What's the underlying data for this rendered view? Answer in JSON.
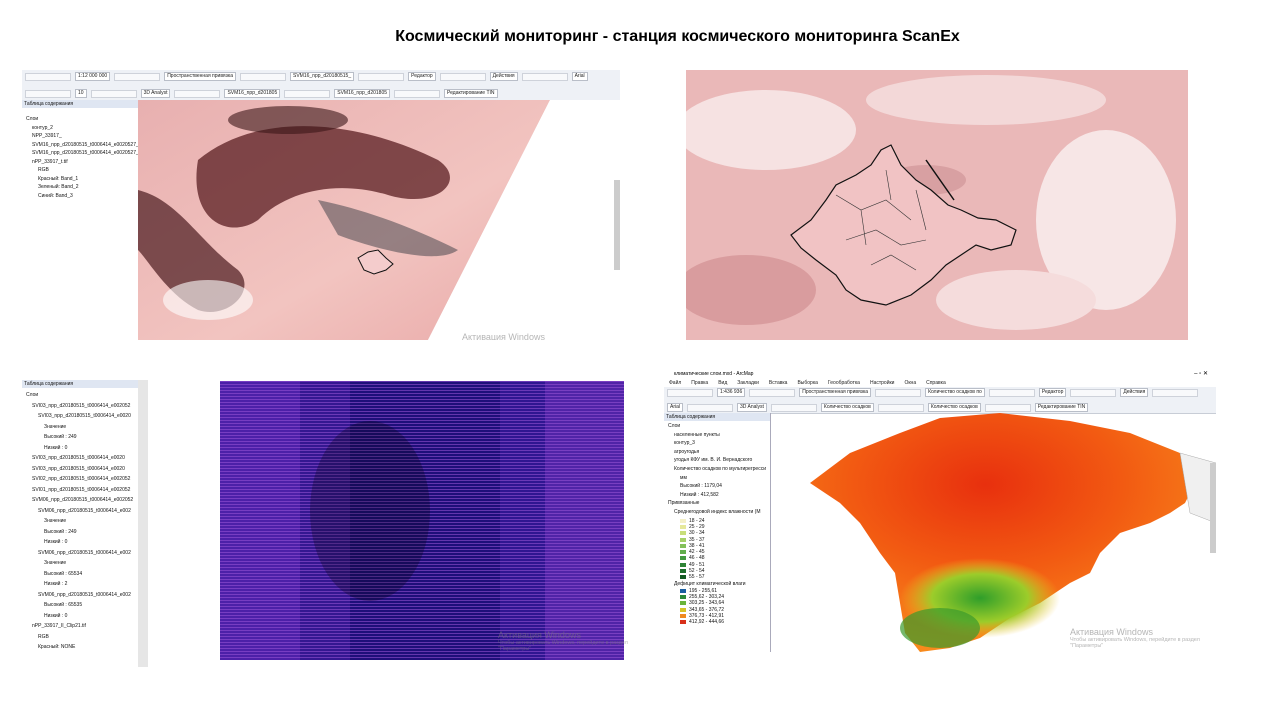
{
  "title": "Космический мониторинг  - станция космического мониторинга ScanEx",
  "screen1": {
    "toolbar": [
      "1:12 000 000",
      "Пространственная привязка",
      "SVM16_npp_d20180515_",
      "Редактор",
      "Действия",
      "Arial",
      "10",
      "3D Analyst",
      "SVM16_npp_d201805",
      "SVM16_npp_d201805",
      "Редактирование TIN"
    ],
    "toc_header": "Таблица содержания",
    "toc": [
      "Слои",
      "контур_2",
      "NPP_33917_",
      "SVM16_npp_d20180515_t0006414_e0020527_",
      "SVM16_npp_d20180515_t0006414_e0020527_",
      "nPP_33917_t.tif",
      "RGB",
      "Красный:   Band_1",
      "Зеленый:  Band_2",
      "Синий:   Band_3"
    ],
    "watermark": "Активация Windows"
  },
  "screen3": {
    "toc_header": "Таблица содержания",
    "toc": [
      "Слои",
      "SVI03_npp_d20180515_t0006414_e002052",
      "SVI03_npp_d20180515_t0006414_e0020",
      "Значение",
      "Высокий : 249",
      "Низкий : 0",
      "SVI03_npp_d20180515_t0006414_e0020",
      "SVI03_npp_d20180515_t0006414_e0020",
      "SVI02_npp_d20180515_t0006414_e002052",
      "SVI01_npp_d20180515_t0006414_e002052",
      "SVM06_npp_d20180515_t0006414_e002052",
      "SVM06_npp_d20180515_t0006414_e002",
      "Значение",
      "Высокий : 249",
      "Низкий : 0",
      "SVM06_npp_d20180515_t0006414_e002",
      "Значение",
      "Высокий : 65534",
      "Низкий : 2",
      "SVM06_npp_d20180515_t0006414_e002",
      "Высокий : 65535",
      "Низкий : 0",
      "nPP_33917_II_Clip21.tif",
      "RGB",
      "Красный:   NONE"
    ],
    "watermark": [
      "Активация Windows",
      "Чтобы активировать Windows, перейдите в раздел",
      "\"Параметры\""
    ]
  },
  "screen4": {
    "window_title": "климатические слои.mxd - ArcMap",
    "menu": [
      "Файл",
      "Правка",
      "Вид",
      "Закладки",
      "Вставка",
      "Выборка",
      "Геообработка",
      "Настройки",
      "Окна",
      "Справка"
    ],
    "toolbar": [
      "1:436 936",
      "Пространственная привязка",
      "Количество осадков по",
      "Редактор",
      "Действия",
      "Arial",
      "3D Analyst",
      "Количество осадков",
      "Количество осадков",
      "Редактирование TIN"
    ],
    "toc_header": "Таблица содержания",
    "toc": [
      "Слои",
      "населенные пункты",
      "контур_3",
      "агроугодья",
      "угодья КФУ им. В. И. Вернадского",
      "Количество осадков по мультирегресси",
      "мм",
      "Высокий : 1179,04",
      "Низкий : 412,582",
      "Привязанные",
      "Среднегодовой индекс влажности (М"
    ],
    "legend1": [
      "18 - 24",
      "25 - 29",
      "30 - 34",
      "35 - 37",
      "38 - 41",
      "42 - 45",
      "46 - 48",
      "49 - 51",
      "52 - 54",
      "55 - 57"
    ],
    "legend2_title": "Дефицит климатической влаги",
    "legend2": [
      "195 - 255,61",
      "255,62 - 303,24",
      "303,25 - 343,64",
      "343,65 - 376,72",
      "376,73 - 412,91",
      "412,92 - 444,66"
    ],
    "watermark": [
      "Активация Windows",
      "Чтобы активировать Windows, перейдите в раздел",
      "\"Параметры\""
    ]
  }
}
